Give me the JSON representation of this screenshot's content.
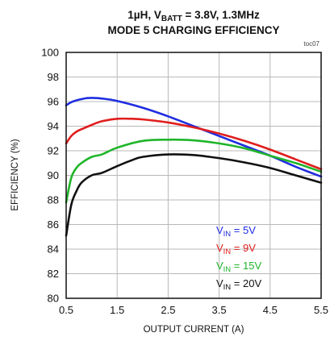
{
  "chart_data": {
    "type": "line",
    "title_line1_main": "1µH, V",
    "title_line1_sub": "BATT",
    "title_line1_rest": " = 3.8V, 1.3MHz",
    "title_line2": "MODE 5 CHARGING EFFICIENCY",
    "figure_id": "toc07",
    "xlabel": "OUTPUT CURRENT (A)",
    "ylabel": "EFFICIENCY (%)",
    "xlim": [
      0.5,
      5.5
    ],
    "ylim": [
      80,
      100
    ],
    "xticks": [
      0.5,
      1.5,
      2.5,
      3.5,
      4.5,
      5.5
    ],
    "yticks": [
      80,
      82,
      84,
      86,
      88,
      90,
      92,
      94,
      96,
      98,
      100
    ],
    "grid": true,
    "legend_position": "bottom-right",
    "legend_prefix": "V",
    "legend_sub": "IN",
    "series": [
      {
        "name_value": " = 5V",
        "color": "#1f2de0",
        "x": [
          0.5,
          0.6,
          0.7,
          0.8,
          0.9,
          1.0,
          1.2,
          1.5,
          2.0,
          2.5,
          3.0,
          3.5,
          4.0,
          4.5,
          5.0,
          5.5
        ],
        "y": [
          95.7,
          95.95,
          96.1,
          96.2,
          96.28,
          96.3,
          96.25,
          96.05,
          95.5,
          94.8,
          94.0,
          93.2,
          92.4,
          91.6,
          90.7,
          89.9
        ]
      },
      {
        "name_value": " = 9V",
        "color": "#e01e1e",
        "x": [
          0.5,
          0.6,
          0.7,
          0.8,
          1.0,
          1.2,
          1.5,
          1.8,
          2.0,
          2.5,
          3.0,
          3.5,
          4.0,
          4.5,
          5.0,
          5.5
        ],
        "y": [
          92.6,
          93.2,
          93.55,
          93.75,
          94.1,
          94.4,
          94.6,
          94.6,
          94.55,
          94.3,
          93.9,
          93.4,
          92.8,
          92.1,
          91.3,
          90.5
        ]
      },
      {
        "name_value": " = 15V",
        "color": "#1fb52a",
        "x": [
          0.5,
          0.6,
          0.7,
          0.8,
          1.0,
          1.2,
          1.5,
          2.0,
          2.5,
          3.0,
          3.5,
          4.0,
          4.5,
          5.0,
          5.5
        ],
        "y": [
          87.8,
          89.8,
          90.6,
          91.0,
          91.5,
          91.7,
          92.25,
          92.8,
          92.9,
          92.85,
          92.6,
          92.2,
          91.6,
          91.0,
          90.3
        ]
      },
      {
        "name_value": " = 20V",
        "color": "#111111",
        "x": [
          0.5,
          0.6,
          0.7,
          0.8,
          1.0,
          1.2,
          1.5,
          1.8,
          2.0,
          2.5,
          3.0,
          3.5,
          4.0,
          4.5,
          5.0,
          5.5
        ],
        "y": [
          85.1,
          87.6,
          88.7,
          89.4,
          90.0,
          90.2,
          90.75,
          91.25,
          91.5,
          91.7,
          91.65,
          91.4,
          91.05,
          90.6,
          90.0,
          89.4
        ]
      }
    ]
  }
}
